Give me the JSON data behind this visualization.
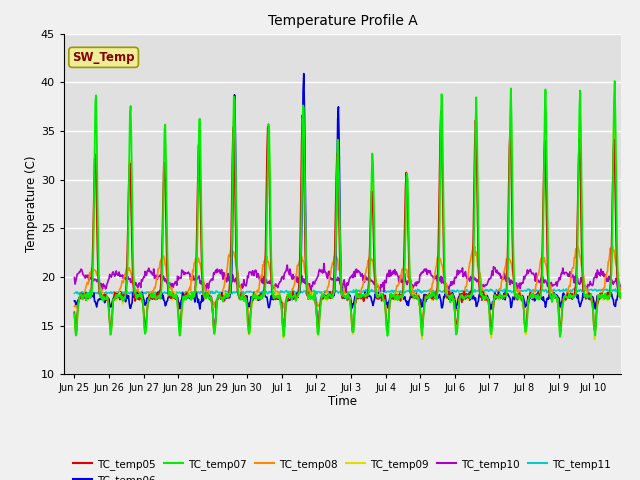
{
  "title": "Temperature Profile A",
  "xlabel": "Time",
  "ylabel": "Temperature (C)",
  "ylim": [
    10,
    45
  ],
  "yticks": [
    10,
    15,
    20,
    25,
    30,
    35,
    40,
    45
  ],
  "series_colors": {
    "TC_temp05": "#dd0000",
    "TC_temp06": "#0000dd",
    "TC_temp07": "#00ee00",
    "TC_temp08": "#ff8800",
    "TC_temp09": "#dddd00",
    "TC_temp10": "#aa00cc",
    "TC_temp11": "#00cccc"
  },
  "fig_bg": "#f0f0f0",
  "plot_bg": "#e0e0e0",
  "band_light": "#ebebeb",
  "band_dark": "#d8d8d8",
  "grid_color": "#ffffff",
  "n_days": 16
}
